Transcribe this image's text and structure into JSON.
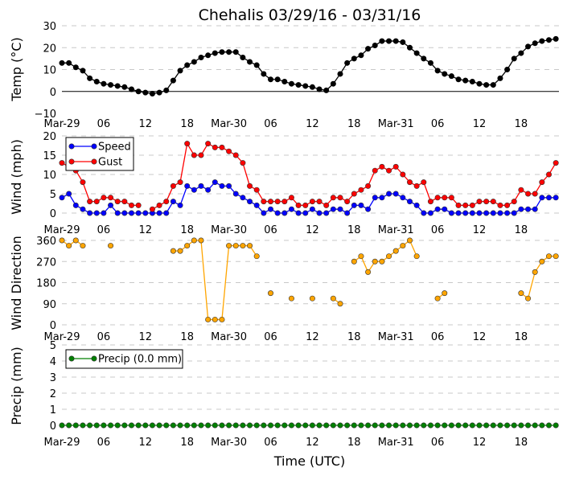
{
  "chart_data": [
    {
      "type": "line",
      "title": "Chehalis 03/29/16 - 03/31/16",
      "ylabel": "Temp (°C)",
      "ylim": [
        -10,
        30
      ],
      "yticks": [
        "30",
        "20",
        "10",
        "0",
        "−10"
      ],
      "ytick_values": [
        30,
        20,
        10,
        0,
        -10
      ],
      "grid": true,
      "series": [
        {
          "name": "Temp",
          "color": "#000000",
          "values": [
            13,
            13,
            11,
            9.5,
            6,
            4.5,
            3.5,
            3,
            2.5,
            2,
            1,
            0,
            -0.5,
            -1,
            -0.5,
            0.5,
            5,
            9.5,
            12,
            13.5,
            15.5,
            16.5,
            17.5,
            18,
            18,
            18,
            15.5,
            13.5,
            12,
            8,
            5.5,
            5.5,
            4.5,
            3.5,
            3,
            2.5,
            2,
            1,
            0.5,
            3.5,
            8,
            13,
            15,
            16.5,
            19.5,
            21,
            23,
            23,
            23,
            22.5,
            20,
            17.5,
            15,
            13,
            9.5,
            8,
            7,
            5.5,
            5,
            4.5,
            3.5,
            3,
            3,
            6,
            10,
            15,
            17.5,
            20.5,
            22,
            23,
            23.5,
            24
          ]
        }
      ]
    },
    {
      "type": "line",
      "ylabel": "Wind (mph)",
      "ylim": [
        -1.7,
        20
      ],
      "yticks": [
        "20",
        "15",
        "10",
        "5",
        "0"
      ],
      "ytick_values": [
        20,
        15,
        10,
        5,
        0
      ],
      "grid": true,
      "legend": "top-left",
      "series": [
        {
          "name": "Speed",
          "color": "#0000ff",
          "values": [
            4,
            5,
            2,
            1,
            0,
            0,
            0,
            2,
            0,
            0,
            0,
            0,
            0,
            0,
            0,
            0,
            3,
            2,
            7,
            6,
            7,
            6,
            8,
            7,
            7,
            5,
            4,
            3,
            2,
            0,
            1,
            0,
            0,
            1,
            0,
            0,
            1,
            0,
            0,
            1,
            1,
            0,
            2,
            2,
            1,
            4,
            4,
            5,
            5,
            4,
            3,
            2,
            0,
            0,
            1,
            1,
            0,
            0,
            0,
            0,
            0,
            0,
            0,
            0,
            0,
            0,
            1,
            1,
            1,
            4,
            4,
            4
          ]
        },
        {
          "name": "Gust",
          "color": "#ff0000",
          "values": [
            13,
            12,
            11,
            8,
            3,
            3,
            4,
            4,
            3,
            3,
            2,
            2,
            null,
            1,
            2,
            3,
            7,
            8,
            18,
            15,
            15,
            18,
            17,
            17,
            16,
            15,
            13,
            7,
            6,
            3,
            3,
            3,
            3,
            4,
            2,
            2,
            3,
            3,
            2,
            4,
            4,
            3,
            5,
            6,
            7,
            11,
            12,
            11,
            12,
            10,
            8,
            7,
            8,
            3,
            4,
            4,
            4,
            2,
            2,
            2,
            3,
            3,
            3,
            2,
            2,
            3,
            6,
            5,
            5,
            8,
            10,
            13
          ]
        }
      ]
    },
    {
      "type": "line",
      "ylabel": "Wind Direction",
      "ylim": [
        -7,
        370
      ],
      "yticks": [
        "360",
        "270",
        "180",
        "90",
        "0"
      ],
      "ytick_values": [
        360,
        270,
        180,
        90,
        0
      ],
      "grid": true,
      "series": [
        {
          "name": "Direction",
          "color": "#ffa500",
          "values": [
            360,
            337.5,
            360,
            337.5,
            null,
            null,
            null,
            337.5,
            null,
            null,
            null,
            null,
            null,
            null,
            null,
            null,
            315,
            315,
            337.5,
            360,
            360,
            22.5,
            22.5,
            22.5,
            337.5,
            337.5,
            337.5,
            337.5,
            292.5,
            null,
            135,
            null,
            null,
            112.5,
            null,
            null,
            112.5,
            null,
            null,
            112.5,
            90,
            null,
            270,
            292.5,
            225,
            270,
            270,
            292.5,
            315,
            337.5,
            360,
            292.5,
            null,
            null,
            112.5,
            135,
            null,
            null,
            null,
            null,
            null,
            null,
            null,
            null,
            null,
            null,
            135,
            112.5,
            225,
            270,
            292.5,
            292.5
          ]
        }
      ]
    },
    {
      "type": "line",
      "ylabel": "Precip (mm)",
      "xlabel": "Time (UTC)",
      "ylim": [
        -0.4,
        5
      ],
      "yticks": [
        "5",
        "4",
        "3",
        "2",
        "1",
        "0"
      ],
      "ytick_values": [
        5,
        4,
        3,
        2,
        1,
        0
      ],
      "grid": true,
      "legend": "top-left",
      "series": [
        {
          "name": "Precip (0.0 mm)",
          "color": "#008000",
          "values": [
            0,
            0,
            0,
            0,
            0,
            0,
            0,
            0,
            0,
            0,
            0,
            0,
            0,
            0,
            0,
            0,
            0,
            0,
            0,
            0,
            0,
            0,
            0,
            0,
            0,
            0,
            0,
            0,
            0,
            0,
            0,
            0,
            0,
            0,
            0,
            0,
            0,
            0,
            0,
            0,
            0,
            0,
            0,
            0,
            0,
            0,
            0,
            0,
            0,
            0,
            0,
            0,
            0,
            0,
            0,
            0,
            0,
            0,
            0,
            0,
            0,
            0,
            0,
            0,
            0,
            0,
            0,
            0,
            0,
            0,
            0,
            0
          ]
        }
      ]
    }
  ],
  "x_hours_start": 0,
  "xticks": {
    "hours": [
      0,
      6,
      12,
      18,
      24,
      30,
      36,
      42,
      48,
      54,
      60,
      66
    ],
    "labels": [
      "Mar-29",
      "06",
      "12",
      "18",
      "Mar-30",
      "06",
      "12",
      "18",
      "Mar-31",
      "06",
      "12",
      "18"
    ]
  }
}
